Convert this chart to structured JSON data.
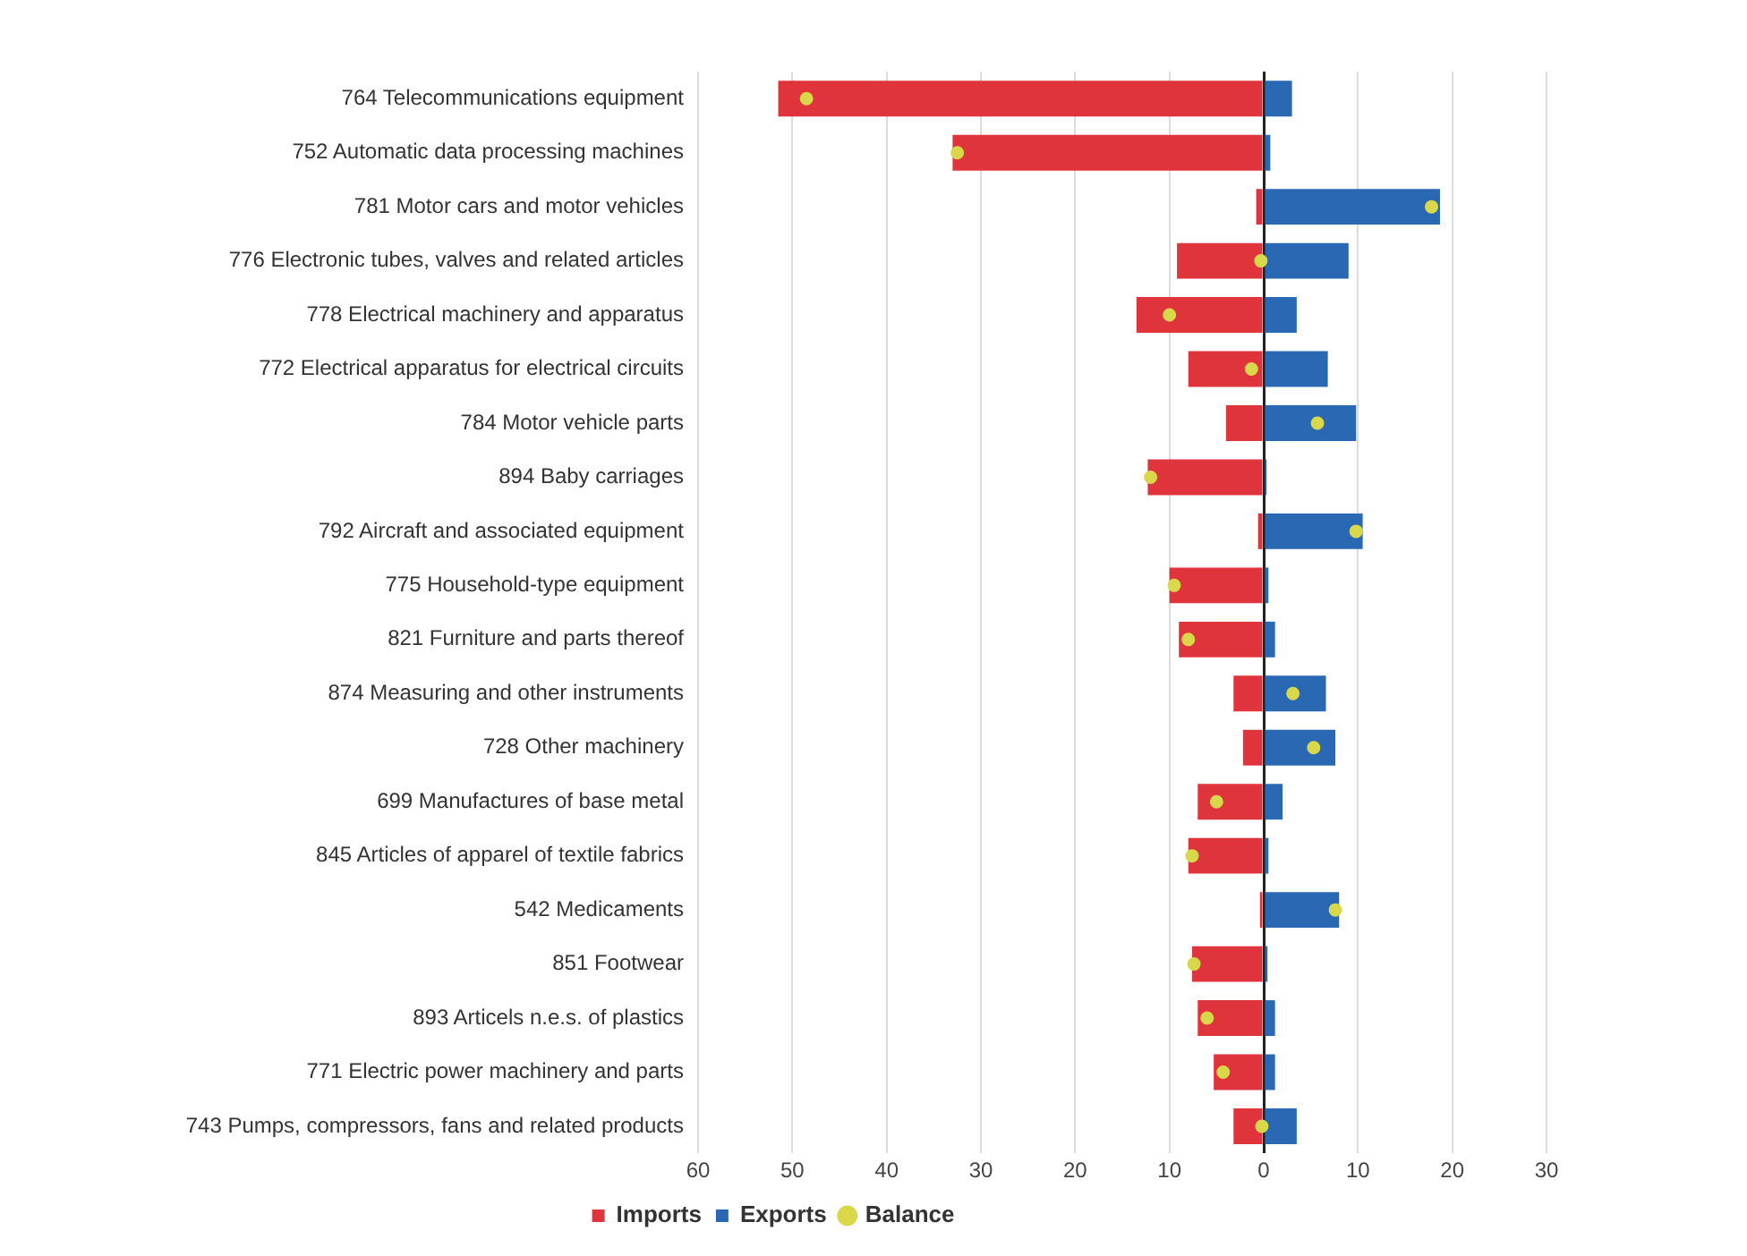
{
  "chart_data": {
    "type": "bar",
    "orientation": "horizontal",
    "stacked": true,
    "categories": [
      "764 Telecommunications equipment",
      "752 Automatic data processing machines",
      "781 Motor cars and motor vehicles",
      "776 Electronic tubes, valves and related articles",
      "778 Electrical machinery and apparatus",
      "772 Electrical apparatus for electrical circuits",
      "784 Motor vehicle parts",
      "894 Baby carriages",
      "792 Aircraft and associated equipment",
      "775 Household-type equipment",
      "821 Furniture and parts thereof",
      "874 Measuring and other instruments",
      "728 Other machinery",
      "699 Manufactures of base metal",
      "845 Articles of apparel of textile fabrics",
      "542 Medicaments",
      "851 Footwear",
      "893 Articels n.e.s. of plastics",
      "771 Electric power machinery and parts",
      "743 Pumps, compressors, fans and related products"
    ],
    "series": [
      {
        "name": "Imports",
        "color": "#e0343c",
        "values": [
          -51.5,
          -33,
          -0.8,
          -9.2,
          -13.5,
          -8,
          -4,
          -12.3,
          -0.6,
          -10,
          -9,
          -3.2,
          -2.2,
          -7,
          -8,
          -0.4,
          -7.6,
          -7,
          -5.3,
          -3.2
        ]
      },
      {
        "name": "Exports",
        "color": "#2a68b3",
        "values": [
          3,
          0.7,
          18.7,
          9,
          3.5,
          6.8,
          9.8,
          0.3,
          10.5,
          0.5,
          1.2,
          6.6,
          7.6,
          2,
          0.5,
          8,
          0.4,
          1.2,
          1.2,
          3.5
        ]
      },
      {
        "name": "Balance",
        "type": "scatter",
        "color": "#d8d84a",
        "values": [
          -48.5,
          -32.5,
          17.8,
          -0.3,
          -10,
          -1.3,
          5.7,
          -12,
          9.8,
          -9.5,
          -8,
          3.1,
          5.3,
          -5,
          -7.6,
          7.6,
          -7.4,
          -6,
          -4.3,
          -0.2
        ]
      }
    ],
    "xlim": [
      -60,
      30
    ],
    "xticks": [
      {
        "value": -60,
        "label": "60"
      },
      {
        "value": -50,
        "label": "50"
      },
      {
        "value": -40,
        "label": "40"
      },
      {
        "value": -30,
        "label": "30"
      },
      {
        "value": -20,
        "label": "20"
      },
      {
        "value": -10,
        "label": "10"
      },
      0,
      10,
      20,
      30
    ],
    "grid": "x",
    "legend": "bottom",
    "marker": "circle"
  }
}
